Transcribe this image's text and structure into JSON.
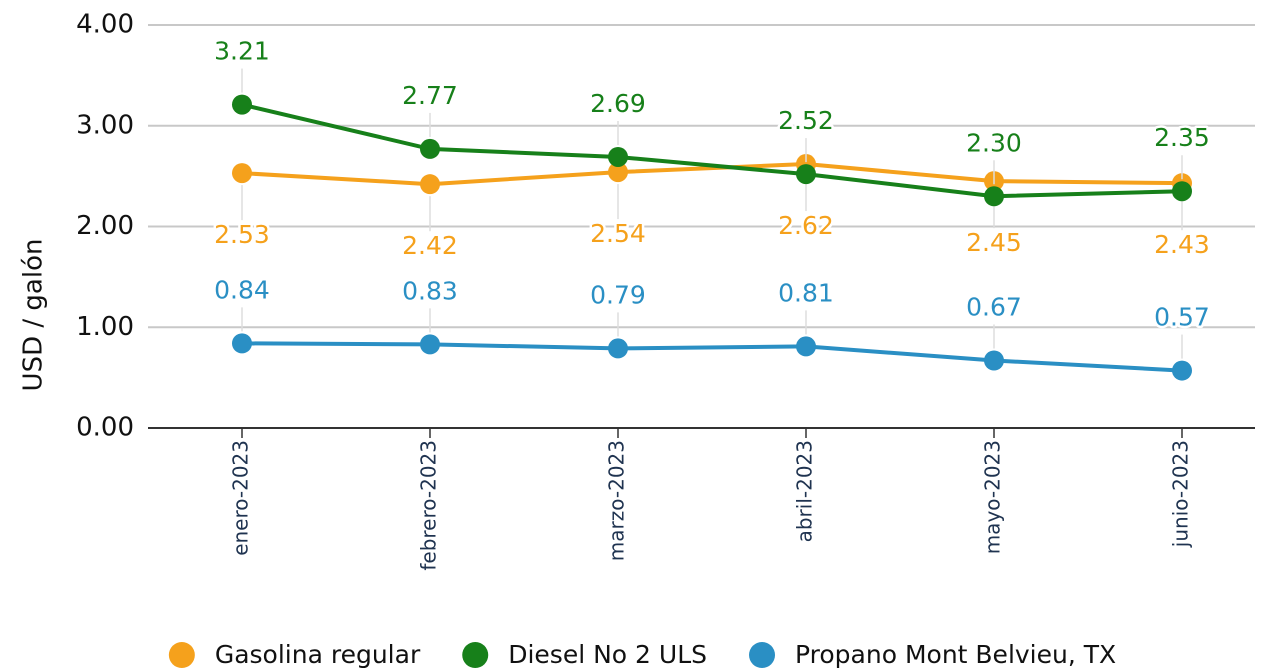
{
  "chart_data": {
    "type": "line",
    "y_label": "USD / galón",
    "categories": [
      "enero-2023",
      "febrero-2023",
      "marzo-2023",
      "abril-2023",
      "mayo-2023",
      "junio-2023"
    ],
    "series": [
      {
        "name": "Gasolina regular",
        "color": "#f5a11c",
        "values": [
          2.53,
          2.42,
          2.54,
          2.62,
          2.45,
          2.43
        ],
        "value_labels": [
          "2.53",
          "2.42",
          "2.54",
          "2.62",
          "2.45",
          "2.43"
        ]
      },
      {
        "name": "Diesel  No 2 ULS",
        "color": "#17801a",
        "values": [
          3.21,
          2.77,
          2.69,
          2.52,
          2.3,
          2.35
        ],
        "value_labels": [
          "3.21",
          "2.77",
          "2.69",
          "2.52",
          "2.30",
          "2.35"
        ]
      },
      {
        "name": "Propano Mont Belvieu, TX",
        "color": "#2a8fc4",
        "values": [
          0.84,
          0.83,
          0.79,
          0.81,
          0.67,
          0.57
        ],
        "value_labels": [
          "0.84",
          "0.83",
          "0.79",
          "0.81",
          "0.67",
          "0.57"
        ]
      }
    ],
    "ylim": [
      0,
      4
    ],
    "yticks": [
      {
        "value": 0,
        "label": "0.00"
      },
      {
        "value": 1,
        "label": "1.00"
      },
      {
        "value": 2,
        "label": "2.00"
      },
      {
        "value": 3,
        "label": "3.00"
      },
      {
        "value": 4,
        "label": "4.00"
      }
    ],
    "grid": true,
    "legend": "bottom"
  }
}
